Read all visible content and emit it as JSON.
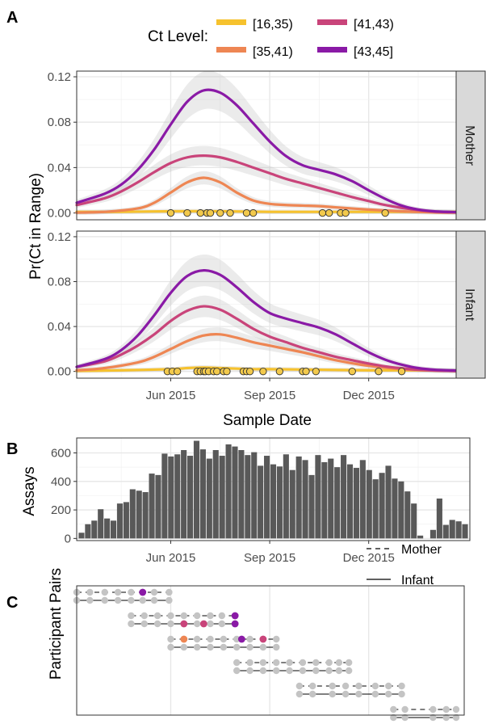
{
  "panel_labels": {
    "a": "A",
    "b": "B",
    "c": "C"
  },
  "legend_ct": {
    "title": "Ct Level:",
    "items": [
      {
        "label": "[16,35)",
        "color": "#F6C22E"
      },
      {
        "label": "[41,43)",
        "color": "#C9447A"
      },
      {
        "label": "[35,41)",
        "color": "#EE8653"
      },
      {
        "label": "[43,45]",
        "color": "#8A1AA6"
      }
    ]
  },
  "legend_pairs": {
    "items": [
      {
        "label": "Mother",
        "dash": true
      },
      {
        "label": "Infant",
        "dash": false
      }
    ]
  },
  "chart_data": [
    {
      "type": "line",
      "panel": "A",
      "ylabel": "Pr(Ct in Range)",
      "xlabel": "Sample Date",
      "x_ticks": [
        "Jun 2015",
        "Sep 2015",
        "Dec 2015"
      ],
      "x_tick_months": [
        5,
        8,
        11
      ],
      "xlim": [
        2.15,
        13.65
      ],
      "ylim": [
        -0.006,
        0.125
      ],
      "y_ticks": [
        "0.00",
        "0.04",
        "0.08",
        "0.12"
      ],
      "y_tick_values": [
        0.0,
        0.04,
        0.08,
        0.12
      ],
      "x_grid_months": [
        3.5,
        6.5,
        9.5,
        12.5
      ],
      "facets": [
        {
          "strip": "Mother",
          "series": [
            {
              "color": "#F6C22E",
              "x": [
                2.15,
                3.5,
                5,
                6.5,
                8,
                9.5,
                11,
                12.5,
                13.65
              ],
              "y": [
                0.001,
                0.001,
                0.0015,
                0.0015,
                0.001,
                0.001,
                0.001,
                0.001,
                0.001
              ]
            },
            {
              "color": "#EE8653",
              "x": [
                2.15,
                3,
                4,
                4.5,
                5,
                5.5,
                6,
                6.5,
                7,
                7.5,
                8,
                8.5,
                9,
                9.5,
                10,
                11,
                12,
                13,
                13.65
              ],
              "y": [
                0.0003,
                0.001,
                0.004,
                0.009,
                0.018,
                0.027,
                0.031,
                0.027,
                0.018,
                0.011,
                0.008,
                0.007,
                0.0065,
                0.006,
                0.005,
                0.003,
                0.0015,
                0.0005,
                0.0003
              ]
            },
            {
              "color": "#C9447A",
              "x": [
                2.15,
                3,
                3.5,
                4,
                4.5,
                5,
                5.5,
                6,
                6.5,
                7,
                7.5,
                8,
                8.5,
                9,
                9.5,
                10,
                10.5,
                11,
                11.5,
                12,
                12.5,
                13,
                13.65
              ],
              "y": [
                0.007,
                0.013,
                0.019,
                0.027,
                0.036,
                0.044,
                0.049,
                0.0505,
                0.049,
                0.045,
                0.04,
                0.035,
                0.03,
                0.026,
                0.022,
                0.018,
                0.014,
                0.0105,
                0.007,
                0.0045,
                0.0025,
                0.0012,
                0.0005
              ]
            },
            {
              "color": "#8A1AA6",
              "x": [
                2.15,
                3,
                3.5,
                4,
                4.5,
                5,
                5.5,
                6,
                6.5,
                7,
                7.5,
                8,
                8.5,
                9,
                9.5,
                10,
                10.5,
                11,
                11.5,
                12,
                12.5,
                13,
                13.65
              ],
              "y": [
                0.009,
                0.017,
                0.025,
                0.038,
                0.056,
                0.078,
                0.098,
                0.108,
                0.106,
                0.095,
                0.079,
                0.063,
                0.05,
                0.042,
                0.038,
                0.034,
                0.028,
                0.02,
                0.0125,
                0.0065,
                0.003,
                0.0014,
                0.0008
              ]
            }
          ],
          "points_x": [
            5.0,
            5.5,
            5.9,
            6.1,
            6.2,
            6.5,
            6.8,
            7.3,
            7.5,
            9.6,
            9.8,
            10.15,
            10.3,
            11.5
          ]
        },
        {
          "strip": "Infant",
          "series": [
            {
              "color": "#F6C22E",
              "x": [
                2.15,
                3.5,
                5,
                5.5,
                6,
                6.5,
                7,
                7.5,
                8,
                9.5,
                11,
                12.5,
                13.65
              ],
              "y": [
                0.0005,
                0.001,
                0.002,
                0.003,
                0.0035,
                0.003,
                0.0025,
                0.002,
                0.002,
                0.0015,
                0.001,
                0.001,
                0.0005
              ]
            },
            {
              "color": "#EE8653",
              "x": [
                2.15,
                3,
                4,
                4.5,
                5,
                5.5,
                6,
                6.5,
                7,
                7.5,
                8,
                8.5,
                9,
                9.5,
                10,
                11,
                12,
                13,
                13.65
              ],
              "y": [
                0.001,
                0.003,
                0.008,
                0.013,
                0.02,
                0.027,
                0.032,
                0.033,
                0.03,
                0.026,
                0.023,
                0.02,
                0.017,
                0.0135,
                0.01,
                0.005,
                0.002,
                0.0008,
                0.0004
              ]
            },
            {
              "color": "#C9447A",
              "x": [
                2.15,
                3,
                3.5,
                4,
                4.5,
                5,
                5.5,
                6,
                6.5,
                7,
                7.5,
                8,
                8.5,
                9,
                9.5,
                10,
                10.5,
                11,
                11.5,
                12,
                12.5,
                13,
                13.65
              ],
              "y": [
                0.004,
                0.009,
                0.015,
                0.023,
                0.033,
                0.045,
                0.054,
                0.058,
                0.055,
                0.047,
                0.038,
                0.031,
                0.026,
                0.021,
                0.017,
                0.013,
                0.01,
                0.007,
                0.0045,
                0.0028,
                0.0015,
                0.0008,
                0.0004
              ]
            },
            {
              "color": "#8A1AA6",
              "x": [
                2.15,
                3,
                3.5,
                4,
                4.5,
                5,
                5.5,
                6,
                6.5,
                7,
                7.5,
                8,
                8.5,
                9,
                9.5,
                10,
                10.5,
                11,
                11.5,
                12,
                12.5,
                13,
                13.65
              ],
              "y": [
                0.004,
                0.011,
                0.019,
                0.032,
                0.05,
                0.07,
                0.085,
                0.09,
                0.086,
                0.075,
                0.062,
                0.052,
                0.047,
                0.043,
                0.039,
                0.033,
                0.025,
                0.017,
                0.0105,
                0.006,
                0.003,
                0.0015,
                0.0008
              ]
            }
          ],
          "points_x": [
            4.9,
            5.05,
            5.2,
            5.8,
            5.9,
            6.0,
            6.05,
            6.15,
            6.3,
            6.4,
            6.6,
            6.7,
            7.2,
            7.3,
            7.4,
            7.8,
            8.3,
            9.0,
            9.1,
            9.4,
            10.5,
            11.3,
            12.0
          ]
        }
      ]
    },
    {
      "type": "bar",
      "panel": "B",
      "ylabel": "Assays",
      "x_ticks": [
        "Jun 2015",
        "Sep 2015",
        "Dec 2015"
      ],
      "y_ticks": [
        "0",
        "200",
        "400",
        "600"
      ],
      "y_tick_values": [
        0,
        200,
        400,
        600
      ],
      "ylim": [
        -15,
        705
      ],
      "values": [
        40,
        100,
        125,
        205,
        140,
        125,
        245,
        255,
        345,
        335,
        325,
        455,
        445,
        595,
        575,
        590,
        620,
        580,
        685,
        625,
        560,
        620,
        580,
        660,
        645,
        620,
        585,
        605,
        510,
        580,
        520,
        505,
        590,
        480,
        575,
        550,
        445,
        585,
        535,
        560,
        500,
        585,
        520,
        495,
        550,
        480,
        415,
        460,
        510,
        420,
        400,
        330,
        245,
        20,
        0,
        60,
        280,
        95,
        130,
        120,
        100
      ]
    },
    {
      "type": "line",
      "panel": "C",
      "ylabel": "Participant Pairs",
      "pairs": [
        {
          "start": 2.15,
          "end": 4.95,
          "mother_points": [
            2.15,
            2.55,
            3.0,
            3.4,
            3.8,
            4.15,
            4.5,
            4.95
          ],
          "infant_points": [
            2.15,
            2.55,
            3.0,
            3.4,
            3.8,
            4.15,
            4.5,
            4.95
          ],
          "colored_points": [
            {
              "row": "mother",
              "x": 4.15,
              "color": "#8A1AA6"
            }
          ]
        },
        {
          "start": 3.8,
          "end": 6.95,
          "mother_points": [
            3.8,
            4.2,
            4.6,
            5.0,
            5.4,
            5.8,
            6.2,
            6.55,
            6.95
          ],
          "infant_points": [
            3.8,
            4.2,
            4.6,
            5.0,
            5.4,
            5.8,
            6.2,
            6.55,
            6.95
          ],
          "colored_points": [
            {
              "row": "mother",
              "x": 6.95,
              "color": "#8A1AA6"
            },
            {
              "row": "infant",
              "x": 5.4,
              "color": "#C9447A"
            },
            {
              "row": "infant",
              "x": 6.0,
              "color": "#C9447A"
            },
            {
              "row": "infant",
              "x": 6.95,
              "color": "#8A1AA6"
            }
          ]
        },
        {
          "start": 5.0,
          "end": 8.2,
          "mother_points": [
            5.0,
            5.4,
            5.8,
            6.2,
            6.6,
            7.0,
            7.4,
            7.8,
            8.2
          ],
          "infant_points": [
            5.0,
            5.4,
            5.8,
            6.2,
            6.6,
            7.0,
            7.4,
            7.8,
            8.2
          ],
          "colored_points": [
            {
              "row": "mother",
              "x": 5.4,
              "color": "#EE8653"
            },
            {
              "row": "mother",
              "x": 7.15,
              "color": "#8A1AA6"
            },
            {
              "row": "mother",
              "x": 7.8,
              "color": "#C9447A"
            }
          ]
        },
        {
          "start": 7.0,
          "end": 10.4,
          "mother_points": [
            7.0,
            7.4,
            7.8,
            8.2,
            8.6,
            9.0,
            9.4,
            9.8,
            10.1,
            10.4
          ],
          "infant_points": [
            7.0,
            7.4,
            7.8,
            8.2,
            8.6,
            9.0,
            9.4,
            9.8,
            10.1,
            10.4
          ],
          "colored_points": []
        },
        {
          "start": 8.9,
          "end": 12.0,
          "mother_points": [
            8.9,
            9.3,
            9.9,
            10.3,
            10.7,
            11.2,
            11.6,
            12.0
          ],
          "infant_points": [
            8.9,
            9.3,
            9.9,
            10.3,
            10.7,
            11.2,
            11.6,
            12.0
          ],
          "colored_points": []
        },
        {
          "start": 11.75,
          "end": 13.65,
          "mother_points": [
            11.75,
            12.1,
            12.95,
            13.35,
            13.65
          ],
          "infant_points": [
            11.75,
            12.1,
            12.95,
            13.35,
            13.65
          ],
          "colored_points": []
        }
      ]
    }
  ]
}
